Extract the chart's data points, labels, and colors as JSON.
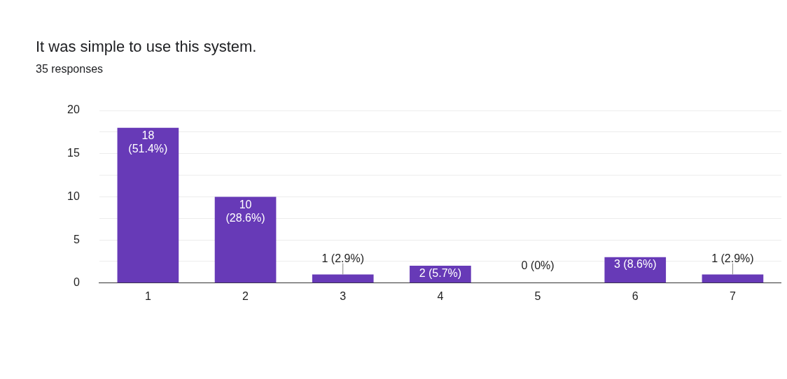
{
  "chart_data": {
    "type": "bar",
    "title": "It was simple to use this system.",
    "subtitle": "35 responses",
    "categories": [
      "1",
      "2",
      "3",
      "4",
      "5",
      "6",
      "7"
    ],
    "values": [
      18,
      10,
      1,
      2,
      0,
      3,
      1
    ],
    "value_labels": [
      "18 (51.4%)",
      "10 (28.6%)",
      "1 (2.9%)",
      "2 (5.7%)",
      "0 (0%)",
      "3 (8.6%)",
      "1 (2.9%)"
    ],
    "color": "#673ab7",
    "ylim": [
      0,
      20
    ],
    "yticks": [
      0,
      {
        "value": 2.5,
        "label": null
      },
      5,
      {
        "value": 7.5,
        "label": null
      },
      10,
      {
        "value": 12.5,
        "label": null
      },
      15,
      {
        "value": 17.5,
        "label": null
      },
      20
    ],
    "grid": "y",
    "legend": false
  }
}
